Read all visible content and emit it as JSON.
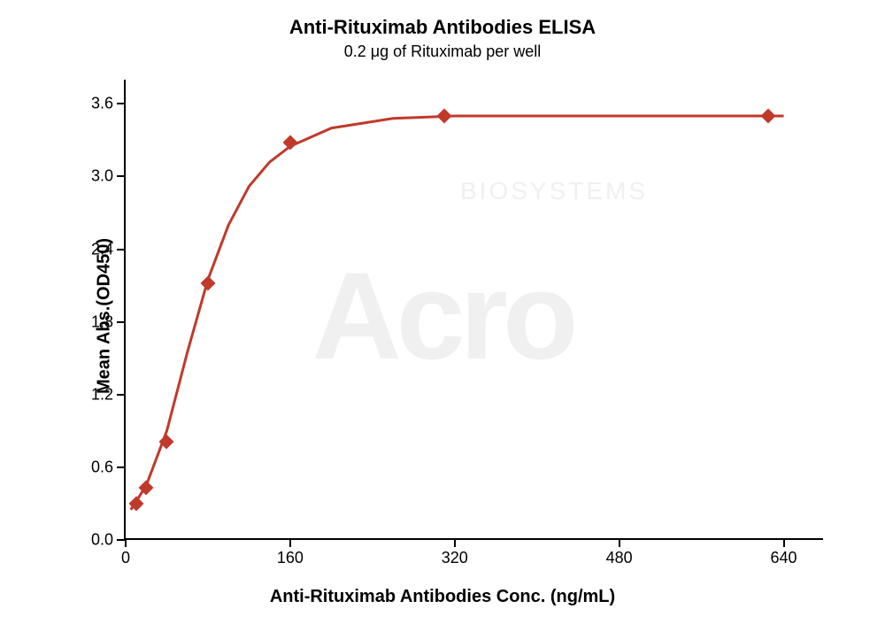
{
  "watermark": "Acro",
  "watermark_sub": "BIOSYSTEMS",
  "titles": {
    "main": "Anti-Rituximab Antibodies ELISA",
    "sub": "0.2 μg of Rituximab per well"
  },
  "axes": {
    "x_label": "Anti-Rituximab Antibodies Conc. (ng/mL)",
    "y_label": "Mean Abs.(OD450)",
    "xlim": [
      0,
      680
    ],
    "ylim": [
      0,
      3.8
    ],
    "x_ticks": [
      0,
      160,
      320,
      480,
      640
    ],
    "x_tick_labels": [
      "0",
      "160",
      "320",
      "480",
      "640"
    ],
    "y_ticks": [
      0.0,
      0.6,
      1.2,
      1.8,
      2.4,
      3.0,
      3.6
    ],
    "y_tick_labels": [
      "0.0",
      "0.6",
      "1.2",
      "1.8",
      "2.4",
      "3.0",
      "3.6"
    ],
    "tick_fontsize": 18,
    "label_fontsize": 20,
    "label_fontweight": 700,
    "axis_color": "#000000",
    "axis_linewidth": 2
  },
  "series": {
    "type": "scatter-line",
    "color": "#c0392b",
    "line_width": 3,
    "marker_style": "diamond",
    "marker_size": 12,
    "data_points": [
      {
        "x": 10,
        "y": 0.3
      },
      {
        "x": 20,
        "y": 0.43
      },
      {
        "x": 40,
        "y": 0.81
      },
      {
        "x": 80,
        "y": 2.12
      },
      {
        "x": 160,
        "y": 3.28
      },
      {
        "x": 310,
        "y": 3.5
      },
      {
        "x": 625,
        "y": 3.5
      }
    ],
    "fit_curve": [
      {
        "x": 5,
        "y": 0.25
      },
      {
        "x": 20,
        "y": 0.45
      },
      {
        "x": 40,
        "y": 0.9
      },
      {
        "x": 60,
        "y": 1.55
      },
      {
        "x": 80,
        "y": 2.15
      },
      {
        "x": 100,
        "y": 2.6
      },
      {
        "x": 120,
        "y": 2.92
      },
      {
        "x": 140,
        "y": 3.12
      },
      {
        "x": 160,
        "y": 3.25
      },
      {
        "x": 200,
        "y": 3.4
      },
      {
        "x": 260,
        "y": 3.48
      },
      {
        "x": 320,
        "y": 3.5
      },
      {
        "x": 480,
        "y": 3.5
      },
      {
        "x": 640,
        "y": 3.5
      }
    ]
  },
  "background_color": "#ffffff"
}
